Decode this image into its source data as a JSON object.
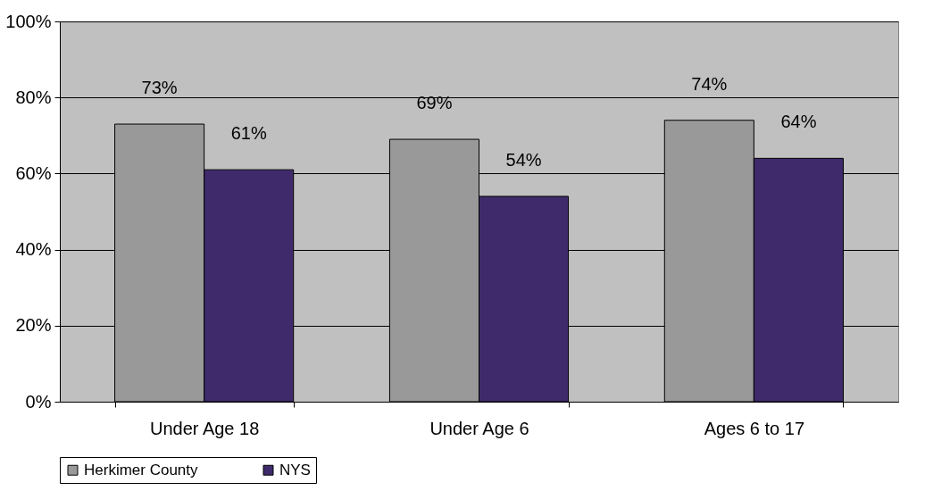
{
  "chart_data": {
    "type": "bar",
    "categories": [
      "Under Age 18",
      "Under Age 6",
      "Ages 6 to 17"
    ],
    "series": [
      {
        "name": "Herkimer County",
        "color": "#999999",
        "values": [
          73,
          69,
          74
        ],
        "value_labels": [
          "73%",
          "69%",
          "74%"
        ]
      },
      {
        "name": "NYS",
        "color": "#3f2b6b",
        "values": [
          61,
          54,
          64
        ],
        "value_labels": [
          "61%",
          "54%",
          "64%"
        ]
      }
    ],
    "ylim": [
      0,
      100
    ],
    "yticks": [
      {
        "value": 0,
        "label": "0%"
      },
      {
        "value": 20,
        "label": "20%"
      },
      {
        "value": 40,
        "label": "40%"
      },
      {
        "value": 60,
        "label": "60%"
      },
      {
        "value": 80,
        "label": "80%"
      },
      {
        "value": 100,
        "label": "100%"
      }
    ],
    "grid": "y",
    "legend": "bottom"
  }
}
